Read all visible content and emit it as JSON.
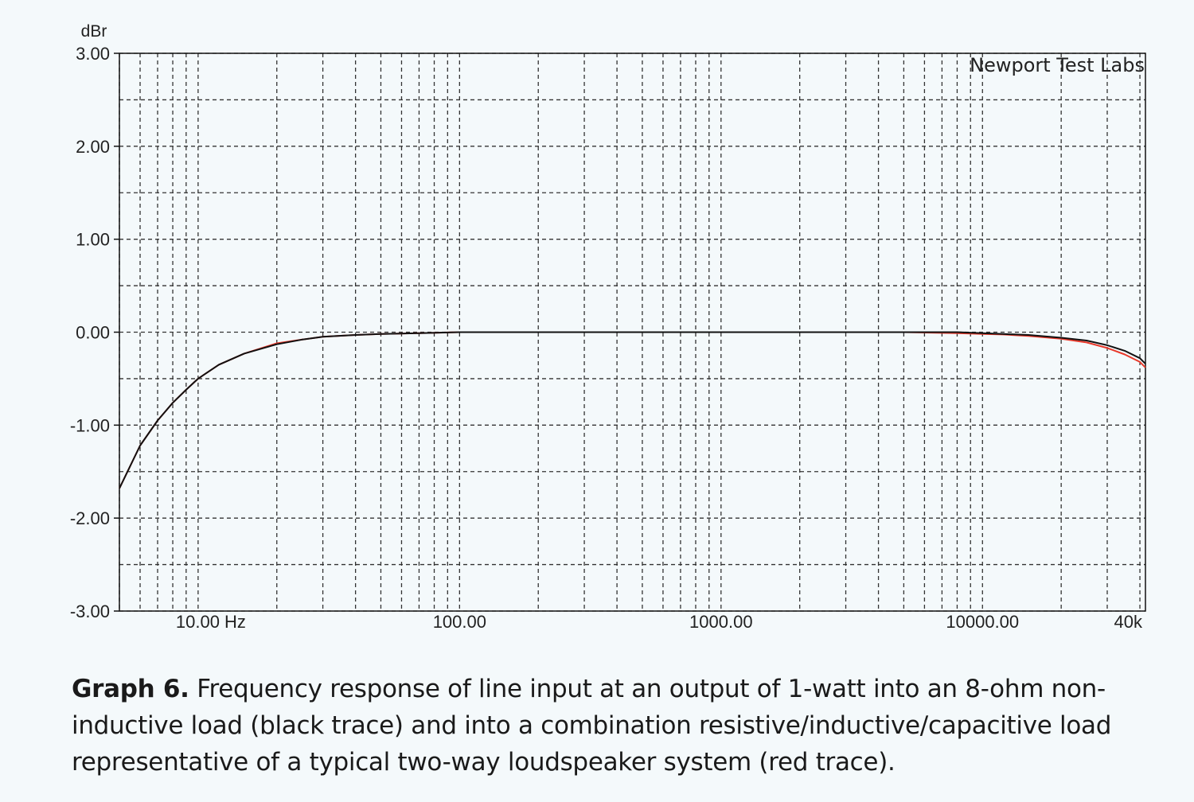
{
  "chart_data": {
    "type": "line",
    "ylabel": "dBr",
    "watermark": "Newport Test Labs",
    "x_scale": "log",
    "xlim": [
      5,
      42000
    ],
    "ylim": [
      -3,
      3
    ],
    "x_ticks": [
      {
        "value": 10,
        "label": "10.00 Hz"
      },
      {
        "value": 100,
        "label": "100.00"
      },
      {
        "value": 1000,
        "label": "1000.00"
      },
      {
        "value": 10000,
        "label": "10000.00"
      },
      {
        "value": 40000,
        "label": "40k"
      }
    ],
    "y_ticks": [
      {
        "value": 3,
        "label": "3.00"
      },
      {
        "value": 2,
        "label": "2.00"
      },
      {
        "value": 1,
        "label": "1.00"
      },
      {
        "value": 0,
        "label": "0.00"
      },
      {
        "value": -1,
        "label": "-1.00"
      },
      {
        "value": -2,
        "label": "-2.00"
      },
      {
        "value": -3,
        "label": "-3.00"
      }
    ],
    "grid": true,
    "series": [
      {
        "color": "#e8392b",
        "x": [
          5,
          6,
          7,
          8,
          9,
          10,
          12,
          15,
          20,
          25,
          30,
          40,
          50,
          70,
          100,
          200,
          500,
          1000,
          2000,
          5000,
          8000,
          10000,
          12000,
          15000,
          20000,
          25000,
          30000,
          35000,
          40000,
          42000
        ],
        "y": [
          -1.68,
          -1.22,
          -0.95,
          -0.76,
          -0.62,
          -0.5,
          -0.35,
          -0.23,
          -0.12,
          -0.08,
          -0.05,
          -0.03,
          -0.02,
          -0.01,
          0,
          0,
          0,
          0,
          0,
          0,
          -0.01,
          -0.02,
          -0.025,
          -0.04,
          -0.07,
          -0.11,
          -0.17,
          -0.24,
          -0.32,
          -0.38
        ]
      },
      {
        "color": "#111111",
        "x": [
          5,
          6,
          7,
          8,
          9,
          10,
          12,
          15,
          20,
          25,
          30,
          40,
          50,
          70,
          100,
          200,
          500,
          1000,
          2000,
          5000,
          8000,
          10000,
          12000,
          15000,
          20000,
          25000,
          30000,
          35000,
          40000,
          42000
        ],
        "y": [
          -1.68,
          -1.22,
          -0.95,
          -0.76,
          -0.62,
          -0.5,
          -0.35,
          -0.23,
          -0.13,
          -0.08,
          -0.05,
          -0.03,
          -0.02,
          -0.01,
          0,
          0,
          0,
          0,
          0,
          0,
          0,
          -0.01,
          -0.02,
          -0.03,
          -0.06,
          -0.09,
          -0.14,
          -0.2,
          -0.28,
          -0.34
        ]
      }
    ]
  },
  "caption": {
    "label": "Graph 6.",
    "text": "Frequency response of line input at an output of 1-watt into an 8-ohm non-inductive load (black trace) and into a combination resistive/inductive/capacitive load representative of a typical two-way loudspeaker system (red trace)."
  }
}
